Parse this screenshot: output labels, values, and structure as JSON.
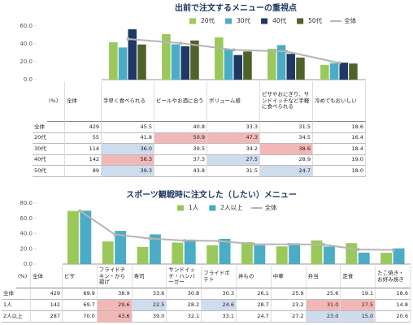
{
  "chart_data": [
    {
      "type": "bar",
      "title": "出前で注文するメニューの重視点",
      "ylim": [
        0,
        60
      ],
      "yticks": [
        {
          "value": 0,
          "label": "0.0"
        },
        {
          "value": 20,
          "label": "20.0"
        },
        {
          "value": 40,
          "label": "40.0"
        },
        {
          "value": 60,
          "label": "60.0"
        }
      ],
      "categories": [
        "手早く食べられる",
        "ビールやお酒に合う",
        "ボリューム感",
        "ピザやおにぎり、サンドイッチなど手軽に食べられる",
        "冷めてもおいしい"
      ],
      "table_header": [
        "(%)",
        "全体"
      ],
      "series": [
        {
          "name": "20代",
          "color": "#9bc85a",
          "n": 55,
          "values": [
            41.8,
            50.9,
            47.3,
            34.5,
            16.4
          ],
          "value_labels": [
            "41.8",
            "50.9",
            "47.3",
            "34.5",
            "16.4"
          ],
          "highlight": [
            null,
            "high",
            "high",
            null,
            null
          ]
        },
        {
          "name": "30代",
          "color": "#4bacc6",
          "n": 114,
          "values": [
            36.0,
            39.5,
            34.2,
            38.6,
            18.4
          ],
          "value_labels": [
            "36.0",
            "39.5",
            "34.2",
            "38.6",
            "18.4"
          ],
          "highlight": [
            "low",
            null,
            null,
            "high",
            null
          ]
        },
        {
          "name": "40代",
          "color": "#1f3864",
          "n": 142,
          "values": [
            56.3,
            37.3,
            27.5,
            28.9,
            19.0
          ],
          "value_labels": [
            "56.3",
            "37.3",
            "27.5",
            "28.9",
            "19.0"
          ],
          "highlight": [
            "high",
            null,
            "low",
            null,
            null
          ]
        },
        {
          "name": "50代",
          "color": "#4f6228",
          "n": 89,
          "values": [
            39.3,
            43.8,
            31.5,
            24.7,
            18.0
          ],
          "value_labels": [
            "39.3",
            "43.8",
            "31.5",
            "24.7",
            "18.0"
          ],
          "highlight": [
            "low",
            null,
            null,
            "low",
            null
          ]
        },
        {
          "name": "全体",
          "color": "#b5b5b5",
          "kind": "line",
          "n": 429,
          "values": [
            45.5,
            40.8,
            33.3,
            31.5,
            18.6
          ],
          "value_labels": [
            "45.5",
            "40.8",
            "33.3",
            "31.5",
            "18.6"
          ],
          "highlight": [
            null,
            null,
            null,
            null,
            null
          ]
        }
      ]
    },
    {
      "type": "bar",
      "title": "スポーツ観戦時に注文した（したい）メニュー",
      "ylim": [
        0,
        80
      ],
      "yticks": [
        {
          "value": 0,
          "label": "0.0"
        },
        {
          "value": 20,
          "label": "20.0"
        },
        {
          "value": 40,
          "label": "40.0"
        },
        {
          "value": 60,
          "label": "60.0"
        },
        {
          "value": 80,
          "label": "80.0"
        }
      ],
      "categories": [
        "ピザ",
        "フライドチキン・から揚げ",
        "寿司",
        "サンドイッチ・ハンバーガー",
        "フライドポテト",
        "丼もの",
        "中華",
        "弁当",
        "定食",
        "たこ焼き・お好み焼き"
      ],
      "table_header": [
        "(%)",
        "全体"
      ],
      "series": [
        {
          "name": "1人",
          "color": "#9bc85a",
          "n": 142,
          "values": [
            69.7,
            29.6,
            22.5,
            28.2,
            24.6,
            28.7,
            23.2,
            31.0,
            27.5,
            14.8
          ],
          "value_labels": [
            "69.7",
            "29.6",
            "22.5",
            "28.2",
            "24.6",
            "28.7",
            "23.2",
            "31.0",
            "27.5",
            "14.8"
          ],
          "highlight": [
            null,
            "high",
            "low",
            null,
            "low",
            null,
            null,
            "high",
            "high",
            null
          ]
        },
        {
          "name": "2人以上",
          "color": "#4bacc6",
          "n": 287,
          "values": [
            70.0,
            43.6,
            39.0,
            32.1,
            33.1,
            24.7,
            27.2,
            23.0,
            15.0,
            20.6
          ],
          "value_labels": [
            "70.0",
            "43.6",
            "39.0",
            "32.1",
            "33.1",
            "24.7",
            "27.2",
            "23.0",
            "15.0",
            "20.6"
          ],
          "highlight": [
            null,
            "high",
            null,
            null,
            null,
            null,
            null,
            "low",
            "low",
            null
          ]
        },
        {
          "name": "全体",
          "color": "#b5b5b5",
          "kind": "line",
          "n": 429,
          "values": [
            69.9,
            38.9,
            33.6,
            30.8,
            30.3,
            26.1,
            25.9,
            25.6,
            19.1,
            18.6
          ],
          "value_labels": [
            "69.9",
            "38.9",
            "33.6",
            "30.8",
            "30.3",
            "26.1",
            "25.9",
            "25.6",
            "19.1",
            "18.6"
          ],
          "highlight": [
            null,
            null,
            null,
            null,
            null,
            null,
            null,
            null,
            null,
            null
          ]
        }
      ]
    }
  ]
}
